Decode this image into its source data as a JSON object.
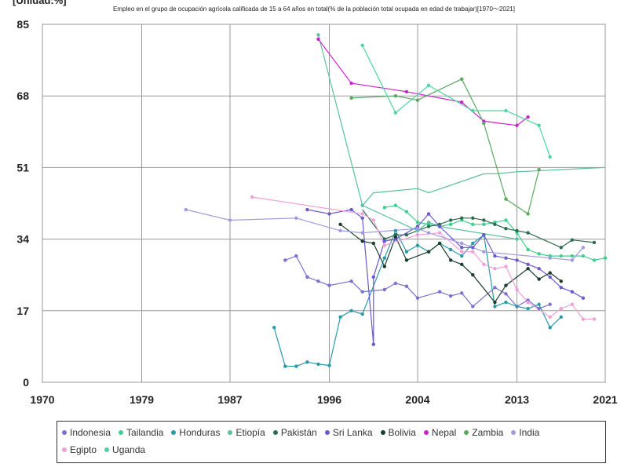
{
  "unit_label": "[Unidad:%]",
  "chart_data": {
    "type": "line",
    "title": "Empleo en el grupo de ocupación agrícola calificada de 15 a 64 años en total(% de la población total ocupada en edad de trabajar)[1970〜2021]",
    "xlabel": "",
    "ylabel": "",
    "xlim": [
      1970,
      2021
    ],
    "ylim": [
      0,
      85
    ],
    "x_ticks": [
      1970,
      1979,
      1987,
      1996,
      2004,
      2013,
      2021
    ],
    "y_ticks": [
      0,
      17,
      34,
      51,
      68,
      85
    ],
    "grid": true,
    "legend_position": "bottom",
    "series": [
      {
        "name": "Indonesia",
        "color": "#7f6fd0",
        "points": [
          [
            1992,
            29
          ],
          [
            1993,
            30
          ],
          [
            1994,
            25
          ],
          [
            1995,
            24
          ],
          [
            1996,
            23
          ],
          [
            1998,
            24
          ],
          [
            1999,
            21.5
          ],
          [
            2001,
            22
          ],
          [
            2002,
            23.5
          ],
          [
            2003,
            22.8
          ],
          [
            2004,
            20
          ],
          [
            2006,
            21.5
          ],
          [
            2007,
            20.5
          ],
          [
            2008,
            21.2
          ],
          [
            2009,
            18
          ],
          [
            2011,
            22.5
          ],
          [
            2012,
            21
          ],
          [
            2013,
            18
          ],
          [
            2014,
            19.5
          ],
          [
            2015,
            17.5
          ],
          [
            2016,
            18.5
          ]
        ]
      },
      {
        "name": "Tailandia",
        "color": "#3ecf8e",
        "points": [
          [
            2001,
            41.5
          ],
          [
            2002,
            42
          ],
          [
            2003,
            40.5
          ],
          [
            2004,
            38
          ],
          [
            2005,
            37.5
          ],
          [
            2006,
            37
          ],
          [
            2007,
            37.5
          ],
          [
            2008,
            38.5
          ],
          [
            2009,
            37.5
          ],
          [
            2010,
            37.5
          ],
          [
            2011,
            38
          ],
          [
            2012,
            38.5
          ],
          [
            2013,
            35.5
          ],
          [
            2014,
            31.5
          ],
          [
            2015,
            30.5
          ],
          [
            2016,
            30
          ],
          [
            2017,
            30
          ],
          [
            2018,
            30
          ],
          [
            2019,
            30
          ],
          [
            2020,
            29
          ],
          [
            2021,
            29.5
          ]
        ]
      },
      {
        "name": "Honduras",
        "color": "#2a9aa8",
        "points": [
          [
            1991,
            13
          ],
          [
            1992,
            3.8
          ],
          [
            1993,
            3.8
          ],
          [
            1994,
            4.8
          ],
          [
            1995,
            4.3
          ],
          [
            1996,
            4
          ],
          [
            1997,
            15.5
          ],
          [
            1998,
            17
          ],
          [
            1999,
            16.2
          ],
          [
            2001,
            29.5
          ],
          [
            2002,
            36
          ],
          [
            2003,
            31
          ],
          [
            2004,
            32.5
          ],
          [
            2005,
            31
          ],
          [
            2006,
            33
          ],
          [
            2007,
            31.5
          ],
          [
            2008,
            30
          ],
          [
            2009,
            33
          ],
          [
            2010,
            35
          ],
          [
            2011,
            18
          ],
          [
            2012,
            19
          ],
          [
            2013,
            18
          ],
          [
            2014,
            17.5
          ],
          [
            2015,
            18.5
          ],
          [
            2016,
            13
          ],
          [
            2017,
            15.5
          ]
        ]
      },
      {
        "name": "Etiopía",
        "color": "#5ac0a0",
        "points": [
          [
            1995,
            82.5
          ],
          [
            1999,
            42
          ],
          [
            2004,
            36
          ],
          [
            2005,
            38
          ],
          [
            2006,
            37
          ],
          [
            2013,
            34
          ]
        ]
      },
      {
        "name": "Pakistán",
        "color": "#2e6b4f",
        "points": [
          [
            2001,
            34
          ],
          [
            2002,
            35
          ],
          [
            2003,
            35
          ],
          [
            2005,
            37
          ],
          [
            2006,
            37.5
          ],
          [
            2007,
            38.5
          ],
          [
            2008,
            39
          ],
          [
            2009,
            39
          ],
          [
            2010,
            38.5
          ],
          [
            2011,
            37.5
          ],
          [
            2012,
            36.5
          ],
          [
            2013,
            36
          ],
          [
            2014,
            35.5
          ],
          [
            2017,
            32
          ],
          [
            2018,
            33.8
          ],
          [
            2020,
            33.2
          ]
        ]
      },
      {
        "name": "Sri Lanka",
        "color": "#6a5acd",
        "points": [
          [
            1994,
            41
          ],
          [
            1996,
            40
          ],
          [
            1998,
            41
          ],
          [
            1999,
            39
          ],
          [
            2000,
            9
          ],
          [
            2000,
            25
          ],
          [
            2001,
            33.5
          ],
          [
            2002,
            34
          ],
          [
            2004,
            37
          ],
          [
            2005,
            40
          ],
          [
            2006,
            37
          ],
          [
            2008,
            32
          ],
          [
            2009,
            32
          ],
          [
            2010,
            35
          ],
          [
            2011,
            30
          ],
          [
            2012,
            29.5
          ],
          [
            2013,
            29
          ],
          [
            2014,
            28
          ],
          [
            2015,
            27
          ],
          [
            2016,
            25
          ],
          [
            2017,
            22.5
          ],
          [
            2018,
            21.5
          ],
          [
            2019,
            20
          ]
        ]
      },
      {
        "name": "Bolivia",
        "color": "#1a3d2e",
        "points": [
          [
            1997,
            37.5
          ],
          [
            1999,
            33.5
          ],
          [
            2000,
            33
          ],
          [
            2001,
            27.5
          ],
          [
            2002,
            34.5
          ],
          [
            2003,
            29
          ],
          [
            2005,
            31
          ],
          [
            2006,
            33
          ],
          [
            2007,
            29
          ],
          [
            2008,
            28
          ],
          [
            2009,
            25.5
          ],
          [
            2011,
            19
          ],
          [
            2012,
            23
          ],
          [
            2014,
            27
          ],
          [
            2015,
            24.5
          ],
          [
            2016,
            26
          ],
          [
            2017,
            24
          ]
        ]
      },
      {
        "name": "Nepal",
        "color": "#cc22cc",
        "points": [
          [
            1995,
            81.5
          ],
          [
            1998,
            71
          ],
          [
            2003,
            69
          ],
          [
            2008,
            66.5
          ],
          [
            2010,
            62
          ],
          [
            2013,
            61
          ],
          [
            2014,
            63
          ]
        ]
      },
      {
        "name": "Zambia",
        "color": "#5aa860",
        "points": [
          [
            1998,
            67.5
          ],
          [
            2002,
            68
          ],
          [
            2004,
            67
          ],
          [
            2008,
            72
          ],
          [
            2010,
            61.5
          ],
          [
            2012,
            43.5
          ],
          [
            2014,
            40
          ],
          [
            2015,
            50.5
          ]
        ]
      },
      {
        "name": "India",
        "color": "#a09ae0",
        "points": [
          [
            1983,
            41
          ],
          [
            1987,
            38.5
          ],
          [
            1993,
            39
          ],
          [
            1997,
            36
          ],
          [
            1999,
            35.5
          ],
          [
            2004,
            36.5
          ],
          [
            2005,
            35.5
          ],
          [
            2008,
            33
          ],
          [
            2010,
            31
          ],
          [
            2016,
            29.5
          ],
          [
            2018,
            29
          ],
          [
            2019,
            32
          ]
        ]
      },
      {
        "name": "Egipto",
        "color": "#f0a0d8",
        "points": [
          [
            1989,
            44
          ],
          [
            1999,
            40
          ],
          [
            2000,
            38.5
          ],
          [
            2001,
            32.5
          ],
          [
            2004,
            35
          ],
          [
            2006,
            35.5
          ],
          [
            2008,
            31
          ],
          [
            2009,
            31
          ],
          [
            2010,
            28
          ],
          [
            2011,
            27
          ],
          [
            2012,
            27.5
          ],
          [
            2013,
            22
          ],
          [
            2014,
            19
          ],
          [
            2016,
            15.5
          ],
          [
            2017,
            17.5
          ],
          [
            2018,
            18.5
          ],
          [
            2019,
            15
          ],
          [
            2020,
            15
          ]
        ]
      },
      {
        "name": "Uganda",
        "color": "#4fd4a0",
        "points": [
          [
            1999,
            80
          ],
          [
            2002,
            64
          ],
          [
            2005,
            70.5
          ],
          [
            2009,
            64.5
          ],
          [
            2012,
            64.5
          ],
          [
            2015,
            61
          ],
          [
            2016,
            53.5
          ]
        ]
      }
    ]
  },
  "extra_lines": [
    {
      "color": "#5ac0a0",
      "points": [
        [
          2013,
          50
        ],
        [
          2021,
          51
        ]
      ]
    },
    {
      "color": "#5ac0a0",
      "points": [
        [
          1999,
          42
        ],
        [
          2000,
          45
        ],
        [
          2004,
          46
        ],
        [
          2005,
          45
        ],
        [
          2010,
          49.5
        ],
        [
          2011,
          49.5
        ],
        [
          2013,
          50
        ]
      ]
    },
    {
      "color": "#2e6b4f",
      "points": [
        [
          1999,
          41
        ],
        [
          2001,
          34
        ]
      ]
    }
  ]
}
